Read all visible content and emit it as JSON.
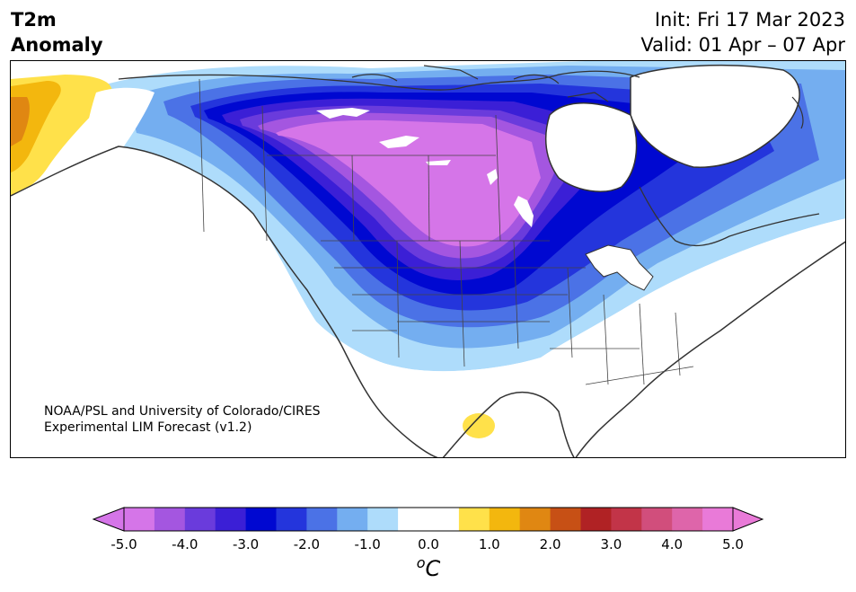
{
  "title": {
    "left_line1": "T2m",
    "left_line2": "Anomaly",
    "init": "Init: Fri 17 Mar 2023",
    "valid": "Valid: 01 Apr – 07 Apr"
  },
  "credit": {
    "line1": "NOAA/PSL and University of Colorado/CIRES",
    "line2": "Experimental LIM Forecast (v1.2)"
  },
  "colorbar": {
    "unit_base": "C",
    "unit_sup": "o",
    "ticks": [
      "-5.0",
      "-4.0",
      "-3.0",
      "-2.0",
      "-1.0",
      "0.0",
      "1.0",
      "2.0",
      "3.0",
      "4.0",
      "5.0"
    ],
    "colors": [
      "#d575e8",
      "#a456e0",
      "#6a3bdc",
      "#3b1fd6",
      "#0008d1",
      "#2435dc",
      "#4b72e6",
      "#74aef0",
      "#aedcfb",
      "#ffffff",
      "#ffffff",
      "#ffe14a",
      "#f3b70e",
      "#e08712",
      "#c75015",
      "#b02224",
      "#c23448",
      "#d14e7c",
      "#de65aa",
      "#e97ad8"
    ],
    "under_color": "#d575e8",
    "over_color": "#e97ad8"
  },
  "map": {
    "colors": {
      "ocean": "#ffffff",
      "coast": "#333333",
      "border": "#444444",
      "lake": "#ffffff"
    }
  }
}
